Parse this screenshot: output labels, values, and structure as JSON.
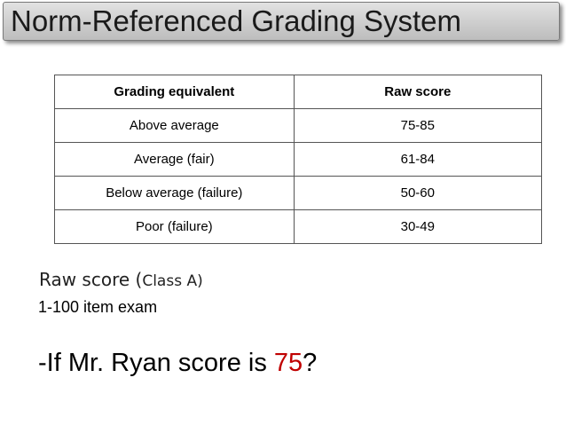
{
  "slide": {
    "title": "Norm-Referenced  Grading System"
  },
  "table": {
    "headers": [
      "Grading equivalent",
      "Raw score"
    ],
    "rows": [
      [
        "Above average",
        "75-85"
      ],
      [
        "Average (fair)",
        "61-84"
      ],
      [
        "Below average (failure)",
        "50-60"
      ],
      [
        "Poor (failure)",
        "30-49"
      ]
    ]
  },
  "body": {
    "raw_label": "Raw score (",
    "raw_class": "Class A)",
    "exam": "1-100 item exam",
    "question_prefix": "-If Mr. Ryan score is  ",
    "question_score": "75",
    "question_suffix": "?"
  },
  "colors": {
    "score_highlight": "#c00000",
    "title_bar": "#cfcfcf"
  }
}
